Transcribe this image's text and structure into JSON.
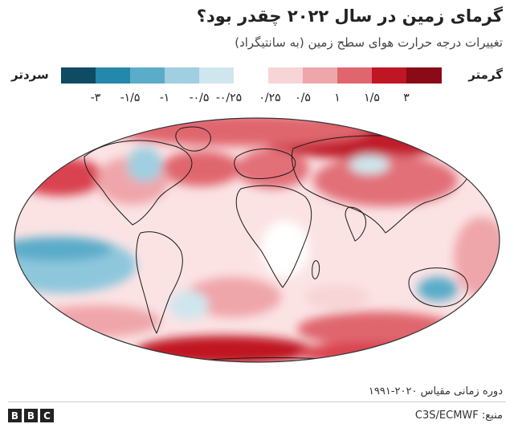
{
  "header": {
    "title": "گرمای زمین در سال ۲۰۲۲ چقدر  بود؟",
    "subtitle": "تغییرات درجه حرارت هوای سطح زمین (به سانتیگراد)"
  },
  "legend": {
    "warmer_label": "گرمتر",
    "cooler_label": "سردتر",
    "tick_labels": [
      "-۳",
      "-۱/۵",
      "-۱",
      "-۰/۵",
      "-۰/۲۵",
      "۰/۲۵",
      "۰/۵",
      "۱",
      "۱/۵",
      "۳"
    ],
    "colors": [
      "#0f4c63",
      "#2487ac",
      "#5aacc9",
      "#9fcfe0",
      "#cfe6ee",
      "#ffffff",
      "#f7d4d6",
      "#efa6aa",
      "#e0666e",
      "#bf1623",
      "#8a0a18"
    ]
  },
  "footer": {
    "baseline_period": "دوره زمانی مقیاس ۲۰۲۰-۱۹۹۱",
    "source": "منبع: C3S/ECMWF",
    "brand_letters": [
      "B",
      "B",
      "C"
    ]
  }
}
